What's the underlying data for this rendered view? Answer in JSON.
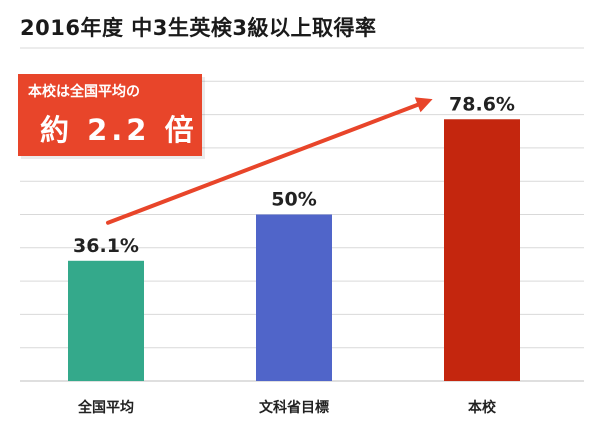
{
  "title": "2016年度 中3生英検3級以上取得率",
  "callout": {
    "line1": "本校は全国平均の",
    "line2": "約 2.2 倍"
  },
  "colors": {
    "bar1": "#34a98b",
    "bar2": "#5065c9",
    "bar3": "#c4260e",
    "arrow": "#e8452a",
    "grid": "#d9d9d9"
  },
  "chart_data": {
    "type": "bar",
    "categories": [
      "全国平均",
      "文科省目標",
      "本校"
    ],
    "values": [
      36.1,
      50,
      78.6
    ],
    "value_labels": [
      "36.1%",
      "50%",
      "78.6%"
    ],
    "ylim": [
      0,
      100
    ],
    "grid": true,
    "annotations": [
      {
        "type": "arrow",
        "from": "全国平均",
        "to": "本校"
      }
    ]
  }
}
